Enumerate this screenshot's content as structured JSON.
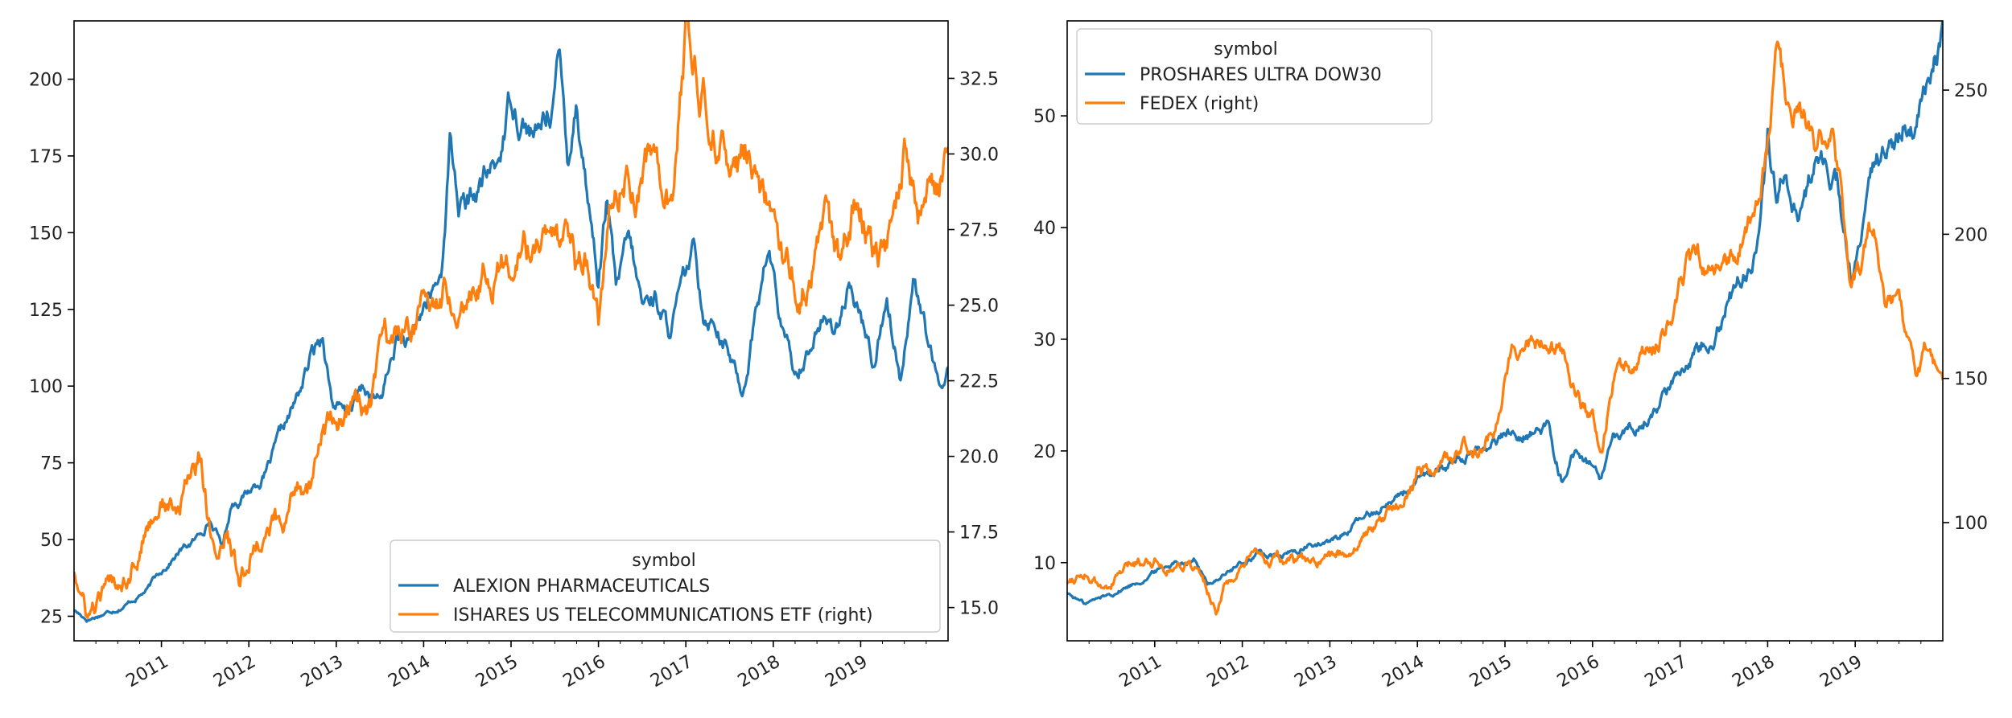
{
  "colors": {
    "blue": "#1f77b4",
    "orange": "#ff7f0e",
    "axis": "#000000",
    "text": "#222222"
  },
  "chart_data": [
    {
      "type": "line",
      "legend": {
        "title": "symbol",
        "placement": "lower-right"
      },
      "grid": false,
      "xlim": [
        2010.0,
        2020.0
      ],
      "ylim_left": [
        17,
        219
      ],
      "ylim_right": [
        13.9,
        34.4
      ],
      "x_ticks": [
        "2011",
        "2012",
        "2013",
        "2014",
        "2015",
        "2016",
        "2017",
        "2018",
        "2019"
      ],
      "y_ticks_left": [
        "25",
        "50",
        "75",
        "100",
        "125",
        "150",
        "175",
        "200"
      ],
      "y_ticks_right": [
        "15.0",
        "17.5",
        "20.0",
        "22.5",
        "25.0",
        "27.5",
        "30.0",
        "32.5"
      ],
      "series": [
        {
          "name": "ALEXION PHARMACEUTICALS",
          "axis": "left",
          "color": "#1f77b4",
          "x": [
            2010.0,
            2010.15,
            2010.35,
            2010.6,
            2010.85,
            2011.0,
            2011.2,
            2011.4,
            2011.55,
            2011.7,
            2011.8,
            2012.0,
            2012.2,
            2012.4,
            2012.55,
            2012.7,
            2012.85,
            2012.95,
            2013.1,
            2013.3,
            2013.5,
            2013.7,
            2013.85,
            2014.0,
            2014.2,
            2014.3,
            2014.4,
            2014.5,
            2014.7,
            2014.85,
            2015.0,
            2015.15,
            2015.3,
            2015.45,
            2015.55,
            2015.65,
            2015.75,
            2015.85,
            2016.0,
            2016.1,
            2016.2,
            2016.35,
            2016.5,
            2016.65,
            2016.8,
            2016.95,
            2017.1,
            2017.2,
            2017.35,
            2017.5,
            2017.65,
            2017.8,
            2017.95,
            2018.1,
            2018.25,
            2018.4,
            2018.55,
            2018.7,
            2018.85,
            2019.0,
            2019.15,
            2019.3,
            2019.45,
            2019.6,
            2019.75,
            2019.9,
            2020.0
          ],
          "y": [
            27,
            24,
            26,
            29,
            34,
            40,
            46,
            50,
            57,
            48,
            62,
            66,
            72,
            85,
            95,
            108,
            117,
            96,
            90,
            99,
            94,
            116,
            112,
            125,
            135,
            181,
            160,
            158,
            167,
            172,
            195,
            188,
            180,
            192,
            206,
            175,
            195,
            170,
            135,
            162,
            130,
            146,
            125,
            130,
            118,
            130,
            143,
            125,
            122,
            110,
            98,
            125,
            145,
            118,
            103,
            113,
            122,
            118,
            130,
            122,
            107,
            130,
            103,
            137,
            117,
            97,
            107
          ]
        },
        {
          "name": "ISHARES US TELECOMMUNICATIONS ETF (right)",
          "axis": "right",
          "color": "#ff7f0e",
          "x": [
            2010.0,
            2010.15,
            2010.35,
            2010.6,
            2010.85,
            2011.0,
            2011.2,
            2011.35,
            2011.45,
            2011.6,
            2011.75,
            2011.9,
            2012.1,
            2012.3,
            2012.4,
            2012.55,
            2012.7,
            2012.85,
            2013.0,
            2013.2,
            2013.4,
            2013.55,
            2013.65,
            2013.8,
            2014.0,
            2014.25,
            2014.5,
            2014.75,
            2015.0,
            2015.2,
            2015.4,
            2015.6,
            2015.75,
            2015.85,
            2016.0,
            2016.15,
            2016.3,
            2016.45,
            2016.6,
            2016.75,
            2016.85,
            2017.0,
            2017.15,
            2017.3,
            2017.45,
            2017.6,
            2017.75,
            2017.9,
            2018.0,
            2018.15,
            2018.3,
            2018.45,
            2018.6,
            2018.75,
            2018.9,
            2019.0,
            2019.2,
            2019.35,
            2019.5,
            2019.65,
            2019.8,
            2019.9,
            2020.0
          ],
          "y": [
            16.3,
            14.6,
            15.4,
            16.2,
            17.8,
            18.6,
            18.0,
            19.6,
            20.1,
            16.8,
            17.4,
            15.8,
            17.3,
            17.8,
            17.2,
            19.2,
            19.0,
            20.8,
            21.0,
            21.8,
            21.2,
            23.8,
            23.4,
            24.6,
            24.8,
            25.6,
            25.8,
            26.5,
            26.5,
            26.8,
            27.0,
            26.5,
            25.8,
            26.4,
            24.2,
            28.3,
            29.6,
            29.0,
            29.8,
            29.4,
            27.8,
            34.0,
            31.8,
            31.1,
            29.8,
            29.5,
            30.2,
            28.3,
            27.7,
            26.3,
            25.7,
            26.6,
            27.3,
            25.9,
            28.0,
            28.7,
            26.6,
            27.5,
            30.1,
            27.6,
            29.4,
            28.9,
            29.9
          ]
        }
      ]
    },
    {
      "type": "line",
      "legend": {
        "title": "symbol",
        "placement": "upper-left"
      },
      "grid": false,
      "xlim": [
        2010.0,
        2020.0
      ],
      "ylim_left": [
        3.0,
        58.5
      ],
      "ylim_right": [
        59,
        274
      ],
      "x_ticks": [
        "2011",
        "2012",
        "2013",
        "2014",
        "2015",
        "2016",
        "2017",
        "2018",
        "2019"
      ],
      "y_ticks_left": [
        "10",
        "20",
        "30",
        "40",
        "50"
      ],
      "y_ticks_right": [
        "100",
        "150",
        "200",
        "250"
      ],
      "series": [
        {
          "name": "PROSHARES ULTRA DOW30",
          "axis": "left",
          "color": "#1f77b4",
          "x": [
            2010.0,
            2010.2,
            2010.5,
            2010.8,
            2011.0,
            2011.2,
            2011.45,
            2011.6,
            2011.75,
            2012.0,
            2012.2,
            2012.4,
            2012.6,
            2012.8,
            2013.0,
            2013.25,
            2013.5,
            2013.75,
            2014.0,
            2014.25,
            2014.5,
            2014.75,
            2015.0,
            2015.3,
            2015.5,
            2015.65,
            2015.8,
            2016.0,
            2016.1,
            2016.25,
            2016.5,
            2016.75,
            2017.0,
            2017.25,
            2017.5,
            2017.75,
            2017.9,
            2018.0,
            2018.1,
            2018.2,
            2018.4,
            2018.6,
            2018.8,
            2018.95,
            2019.1,
            2019.25,
            2019.4,
            2019.55,
            2019.7,
            2019.85,
            2020.0
          ],
          "y": [
            7.3,
            6.3,
            7.2,
            8.3,
            9.2,
            10.0,
            10.5,
            8.0,
            8.8,
            9.9,
            10.9,
            10.4,
            10.9,
            11.6,
            11.7,
            13.2,
            14.5,
            16.0,
            17.0,
            18.2,
            19.5,
            20.5,
            21.5,
            22.0,
            22.0,
            17.5,
            20.0,
            18.5,
            17.0,
            20.5,
            22.5,
            24.0,
            27.5,
            30.0,
            33.0,
            36.0,
            39.0,
            48.0,
            43.0,
            46.0,
            42.0,
            47.0,
            44.0,
            35.0,
            40.0,
            45.0,
            47.0,
            50.0,
            48.0,
            53.0,
            56.5
          ]
        },
        {
          "name": "FEDEX (right)",
          "axis": "right",
          "color": "#ff7f0e",
          "x": [
            2010.0,
            2010.2,
            2010.4,
            2010.6,
            2010.8,
            2011.0,
            2011.2,
            2011.4,
            2011.55,
            2011.7,
            2011.8,
            2012.0,
            2012.2,
            2012.5,
            2012.8,
            2013.0,
            2013.2,
            2013.5,
            2013.7,
            2014.0,
            2014.3,
            2014.6,
            2014.9,
            2015.1,
            2015.3,
            2015.5,
            2015.7,
            2015.85,
            2016.0,
            2016.1,
            2016.3,
            2016.5,
            2016.7,
            2016.9,
            2017.1,
            2017.3,
            2017.5,
            2017.7,
            2017.9,
            2018.0,
            2018.1,
            2018.25,
            2018.4,
            2018.6,
            2018.75,
            2018.85,
            2018.95,
            2019.1,
            2019.25,
            2019.35,
            2019.5,
            2019.7,
            2019.85,
            2020.0
          ],
          "y": [
            80,
            84,
            76,
            82,
            86,
            88,
            85,
            87,
            80,
            70,
            78,
            84,
            88,
            86,
            85,
            87,
            90,
            99,
            104,
            118,
            121,
            126,
            135,
            165,
            165,
            161,
            156,
            142,
            135,
            125,
            158,
            153,
            160,
            174,
            190,
            188,
            186,
            200,
            217,
            234,
            262,
            235,
            245,
            232,
            237,
            215,
            178,
            193,
            200,
            176,
            173,
            153,
            160,
            152
          ]
        }
      ]
    }
  ]
}
